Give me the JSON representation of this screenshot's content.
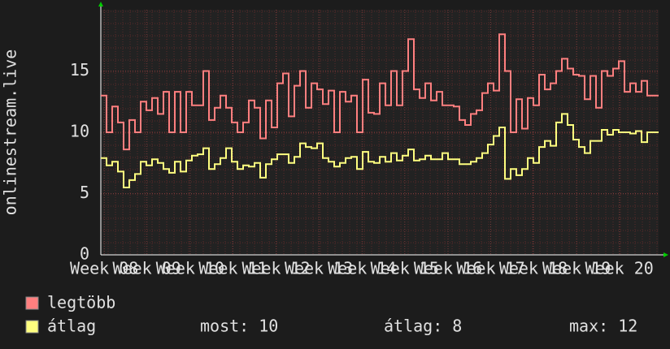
{
  "chart_data": {
    "type": "line",
    "y_label": "onlinestream.live",
    "ylim": [
      0,
      20
    ],
    "yticks": [
      0,
      5,
      10,
      15
    ],
    "xlim": [
      0,
      98
    ],
    "xticks": [
      {
        "value": 0.6,
        "label": "Week 08"
      },
      {
        "value": 8.1,
        "label": "Week 09"
      },
      {
        "value": 15.7,
        "label": "Week 10"
      },
      {
        "value": 23.2,
        "label": "Week 11"
      },
      {
        "value": 30.8,
        "label": "Week 12"
      },
      {
        "value": 38.3,
        "label": "Week 13"
      },
      {
        "value": 45.9,
        "label": "Week 14"
      },
      {
        "value": 53.4,
        "label": "Week 15"
      },
      {
        "value": 61.0,
        "label": "Week 16"
      },
      {
        "value": 68.5,
        "label": "Week 17"
      },
      {
        "value": 76.0,
        "label": "Week 18"
      },
      {
        "value": 83.6,
        "label": "Week 19"
      },
      {
        "value": 91.1,
        "label": "Week 20"
      }
    ],
    "grid": true,
    "step": true,
    "series": [
      {
        "name": "legtöbb",
        "color": "#ff7f7f",
        "values": [
          13,
          10,
          12.1,
          10.8,
          8.6,
          11,
          10,
          12.5,
          11.8,
          12.8,
          11.5,
          13.3,
          10,
          13.3,
          10,
          13.3,
          12.2,
          12.2,
          15,
          11,
          12,
          13,
          12,
          10.8,
          10,
          10.8,
          12.6,
          12,
          9.5,
          12.6,
          10.4,
          14,
          14.8,
          11.3,
          13.8,
          15,
          12,
          14,
          13.5,
          12.3,
          13.4,
          10,
          13.3,
          12.5,
          13,
          10,
          14.3,
          11.6,
          11.5,
          14,
          12.2,
          15,
          12.2,
          15,
          17.6,
          13.5,
          12.8,
          14,
          12.6,
          13.3,
          12.2,
          12.2,
          12.1,
          11,
          10.6,
          11.5,
          11.8,
          13.2,
          14,
          13.4,
          18,
          15,
          10,
          12.7,
          10.3,
          12.8,
          12.2,
          14.7,
          13.5,
          14,
          15,
          16,
          15.2,
          14.7,
          14.6,
          12.7,
          14.6,
          12,
          15,
          14.6,
          15.2,
          15.8,
          13.3,
          14,
          13.3,
          14.2,
          13,
          13
        ]
      },
      {
        "name": "átlag",
        "color": "#ffff7f",
        "values": [
          7.9,
          7.3,
          7.6,
          6.8,
          5.5,
          6.1,
          6.6,
          7.6,
          7.3,
          7.8,
          7.5,
          7,
          6.7,
          7.6,
          6.8,
          7.7,
          8.1,
          8.2,
          8.7,
          7,
          7.4,
          7.9,
          8.7,
          7.6,
          7,
          7.3,
          7.2,
          7.5,
          6.3,
          7.4,
          7.8,
          8.2,
          8.2,
          7.5,
          8,
          9.1,
          8.8,
          8.7,
          9.1,
          7.9,
          7.6,
          7.2,
          7.5,
          7.9,
          8,
          7,
          8.4,
          7.6,
          7.5,
          8,
          7.6,
          8.3,
          7.7,
          8.1,
          8.6,
          7.7,
          7.8,
          8.1,
          7.8,
          7.8,
          8.3,
          7.8,
          7.8,
          7.4,
          7.4,
          7.6,
          7.9,
          8.3,
          9,
          9.7,
          10.4,
          6.2,
          7,
          6.5,
          7,
          7.9,
          7.5,
          8.8,
          9.3,
          8.9,
          10.8,
          11.5,
          10.6,
          9.4,
          8.8,
          8.3,
          9.3,
          9.3,
          10.2,
          9.8,
          10.2,
          10,
          10,
          9.9,
          10.1,
          9.2,
          10,
          10
        ]
      }
    ],
    "stats": [
      "most: 10",
      "átlag: 8",
      "max: 12"
    ]
  }
}
